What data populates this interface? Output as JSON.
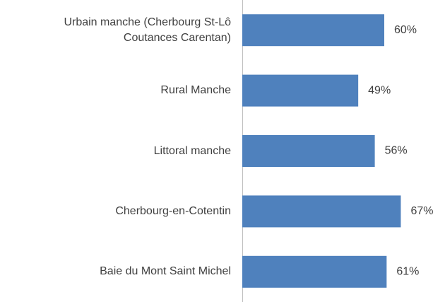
{
  "chart_data": {
    "type": "barh",
    "categories": [
      "Urbain manche (Cherbourg St-Lô Coutances Carentan)",
      "Rural Manche",
      "Littoral manche",
      "Cherbourg-en-Cotentin",
      "Baie du Mont Saint Michel"
    ],
    "values": [
      60,
      49,
      56,
      67,
      61
    ],
    "value_labels": [
      "60%",
      "49%",
      "56%",
      "67%",
      "61%"
    ],
    "color": "#4f81bd"
  }
}
